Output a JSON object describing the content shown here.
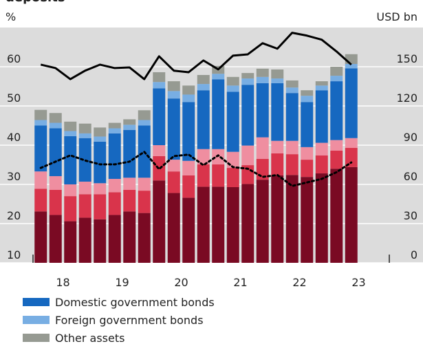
{
  "chart_data": {
    "type": "bar",
    "title": "deposits",
    "y_label": "%",
    "y2_label": "USD bn",
    "categories": [
      null,
      "18",
      null,
      null,
      null,
      "19",
      null,
      null,
      null,
      "20",
      null,
      null,
      null,
      "21",
      null,
      null,
      null,
      "22",
      null,
      null,
      null,
      "23"
    ],
    "ylim": [
      10,
      70
    ],
    "yticks": [
      10,
      20,
      30,
      40,
      50,
      60
    ],
    "y2lim": [
      0,
      180
    ],
    "y2ticks": [
      0,
      30,
      60,
      90,
      120,
      150
    ],
    "grid": true,
    "stacked": true,
    "series": [
      {
        "color": "#7a0a23",
        "values": [
          23.1,
          22.2,
          20.6,
          21.5,
          21.1,
          22.2,
          23.1,
          22.7,
          31.0,
          27.8,
          26.6,
          29.4,
          29.4,
          29.3,
          30.1,
          31.2,
          32.3,
          32.4,
          31.9,
          32.8,
          34.0,
          34.4
        ]
      },
      {
        "color": "#d9344b",
        "values": [
          5.8,
          6.4,
          6.4,
          6.0,
          6.4,
          5.8,
          5.5,
          5.7,
          6.2,
          5.5,
          5.7,
          5.7,
          5.7,
          4.9,
          4.8,
          5.3,
          5.6,
          5.3,
          4.4,
          4.6,
          4.6,
          4.9
        ]
      },
      {
        "color": "#ef8ea0",
        "values": [
          4.4,
          3.5,
          3.0,
          3.2,
          2.8,
          3.4,
          3.1,
          3.3,
          2.8,
          3.0,
          3.7,
          3.9,
          3.9,
          4.1,
          5.0,
          5.5,
          3.2,
          3.4,
          3.2,
          3.2,
          2.7,
          2.5
        ]
      },
      {
        "name": "Domestic government bonds",
        "color": "#1668c0",
        "values": [
          11.7,
          12.2,
          12.3,
          11.1,
          10.6,
          11.6,
          12.2,
          13.3,
          14.5,
          15.6,
          15.0,
          15.0,
          17.8,
          15.3,
          15.5,
          13.8,
          14.7,
          12.2,
          11.5,
          13.4,
          15.0,
          17.8
        ]
      },
      {
        "name": "Foreign government bonds",
        "color": "#78aee3",
        "values": [
          1.4,
          1.4,
          1.3,
          1.2,
          1.3,
          1.3,
          1.3,
          1.4,
          1.6,
          1.9,
          1.9,
          1.6,
          1.4,
          1.6,
          1.6,
          1.6,
          1.2,
          1.4,
          1.6,
          1.2,
          1.4,
          1.1
        ]
      },
      {
        "name": "Other assets",
        "color": "#969a92",
        "values": [
          2.6,
          2.5,
          2.4,
          2.5,
          2.3,
          1.4,
          1.4,
          2.5,
          2.5,
          2.5,
          2.3,
          2.3,
          2.0,
          2.2,
          1.4,
          2.1,
          2.3,
          1.8,
          1.4,
          1.1,
          2.3,
          2.5
        ]
      }
    ],
    "lines": [
      {
        "color": "#000000",
        "style": "solid",
        "axis": "y2",
        "values": [
          151.6,
          149,
          140.5,
          147,
          151.6,
          149,
          149.5,
          140.5,
          158,
          147,
          145.8,
          154.8,
          148,
          158.5,
          159.5,
          168,
          163.8,
          176,
          173.8,
          170.7,
          161.7,
          151.6
        ]
      },
      {
        "color": "#000000",
        "style": "dotted",
        "axis": "y",
        "values": [
          34.2,
          35.8,
          37.4,
          36.1,
          35.1,
          35.1,
          35.8,
          38.3,
          33.9,
          37.2,
          37.6,
          34.9,
          37.4,
          34.4,
          34.0,
          31.9,
          32.4,
          29.6,
          30.5,
          31.4,
          33.1,
          35.6
        ]
      }
    ]
  }
}
